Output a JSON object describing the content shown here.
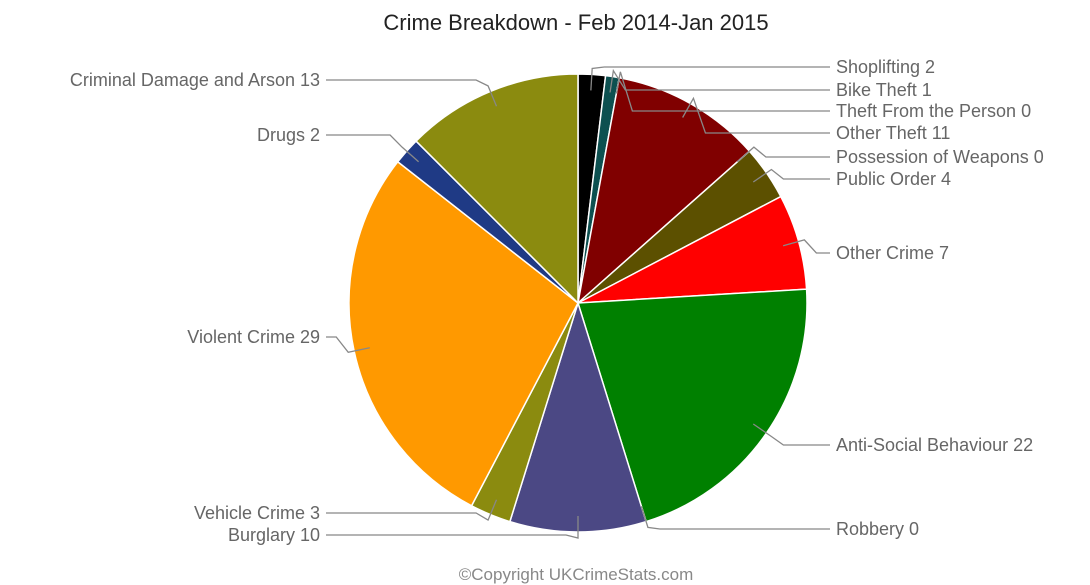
{
  "chart_data": {
    "type": "pie",
    "title": "Crime Breakdown - Feb 2014-Jan 2015",
    "legend": "none",
    "slices": [
      {
        "label": "Shoplifting",
        "value": 2,
        "color": "#000000"
      },
      {
        "label": "Bike Theft",
        "value": 1,
        "color": "#0d5050"
      },
      {
        "label": "Theft From the Person",
        "value": 0,
        "color": "#4b0082"
      },
      {
        "label": "Other Theft",
        "value": 11,
        "color": "#800000"
      },
      {
        "label": "Possession of Weapons",
        "value": 0,
        "color": "#a0522d"
      },
      {
        "label": "Public Order",
        "value": 4,
        "color": "#5c5000"
      },
      {
        "label": "Other Crime",
        "value": 7,
        "color": "#ff0000"
      },
      {
        "label": "Anti-Social Behaviour",
        "value": 22,
        "color": "#008000"
      },
      {
        "label": "Robbery",
        "value": 0,
        "color": "#6a5acd"
      },
      {
        "label": "Burglary",
        "value": 10,
        "color": "#4b4884"
      },
      {
        "label": "Vehicle Crime",
        "value": 3,
        "color": "#8b8b0f"
      },
      {
        "label": "Violent Crime",
        "value": 29,
        "color": "#ff9900"
      },
      {
        "label": "Drugs",
        "value": 2,
        "color": "#1f3a85"
      },
      {
        "label": "Criminal Damage and Arson",
        "value": 13,
        "color": "#8b8b0f"
      }
    ]
  },
  "footer": {
    "copyright": "©Copyright UKCrimeStats.com"
  }
}
